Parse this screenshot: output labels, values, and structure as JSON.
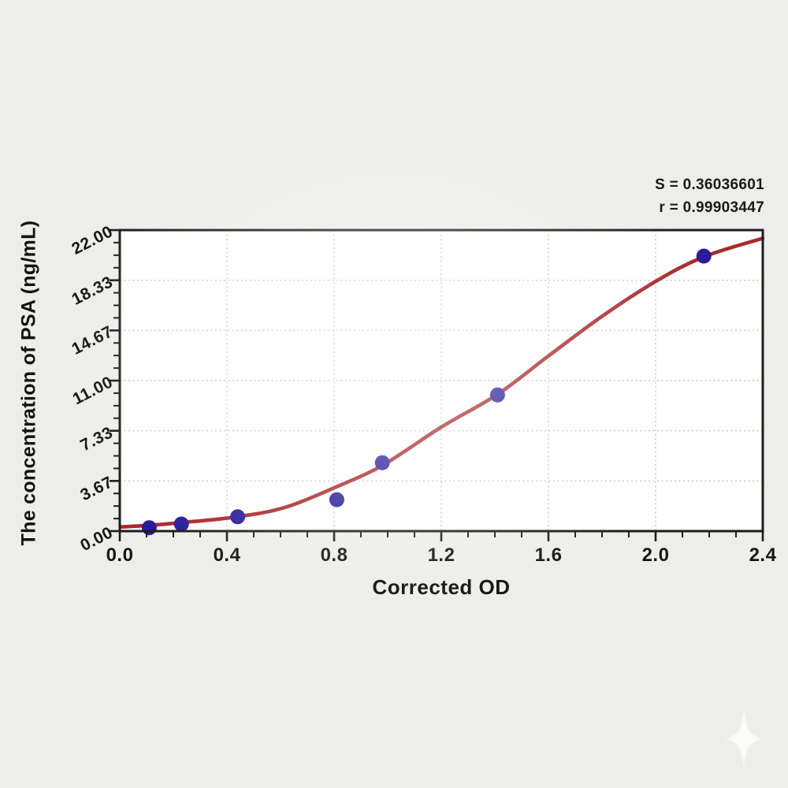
{
  "chart_data": {
    "type": "scatter",
    "title": "",
    "xlabel": "Corrected OD",
    "ylabel": "The concentration of PSA (ng/mL)",
    "xlim": [
      0,
      2.4
    ],
    "ylim": [
      0,
      22
    ],
    "grid": "dotted major gridlines, on",
    "legend_position": "none",
    "x_ticks": {
      "values": [
        0,
        0.4,
        0.8,
        1.2,
        1.6,
        2.0,
        2.4
      ],
      "labels": [
        "0.0",
        "0.4",
        "0.8",
        "1.2",
        "1.6",
        "2.0",
        "2.4"
      ],
      "minor_divisions": 4
    },
    "y_ticks": {
      "values": [
        0,
        3.6667,
        7.3333,
        11,
        14.6667,
        18.3333,
        22
      ],
      "labels": [
        "0.00",
        "3.67",
        "7.33",
        "11.00",
        "14.67",
        "18.33",
        "22.00"
      ],
      "minor_divisions": 4
    },
    "series": [
      {
        "name": "standard-points",
        "type": "scatter",
        "color": "#2a1c99",
        "marker": "circle",
        "marker_radius": 9.5,
        "x": [
          0.11,
          0.23,
          0.44,
          0.81,
          0.98,
          1.41,
          2.18
        ],
        "y": [
          0.25,
          0.52,
          1.05,
          2.3,
          5.0,
          9.95,
          20.1
        ]
      },
      {
        "name": "fitted-curve",
        "type": "line",
        "color": "#a9292d",
        "width": 4.6,
        "x": [
          0,
          0.11,
          0.23,
          0.44,
          0.62,
          0.81,
          0.98,
          1.2,
          1.41,
          1.6,
          1.8,
          2.0,
          2.18,
          2.4
        ],
        "y": [
          0.3,
          0.42,
          0.62,
          1.05,
          1.75,
          3.25,
          4.8,
          7.6,
          10.0,
          12.8,
          15.7,
          18.25,
          20.05,
          21.4
        ]
      }
    ],
    "annotations": [
      "S = 0.36036601",
      "r = 0.99903447"
    ],
    "fit_stats": {
      "S": "0.36036601",
      "r": "0.99903447"
    }
  },
  "styles": {
    "background": "#edeeec",
    "plot_background": "#ffffff",
    "axis_color": "#1c1c1c",
    "grid_color": "#c6c6c3",
    "text_color": "#161616",
    "curve_color": "#a9292d",
    "point_color": "#2a1c99"
  },
  "watermark": {
    "icon": "four-point-star-icon",
    "color": "#ffffff"
  }
}
